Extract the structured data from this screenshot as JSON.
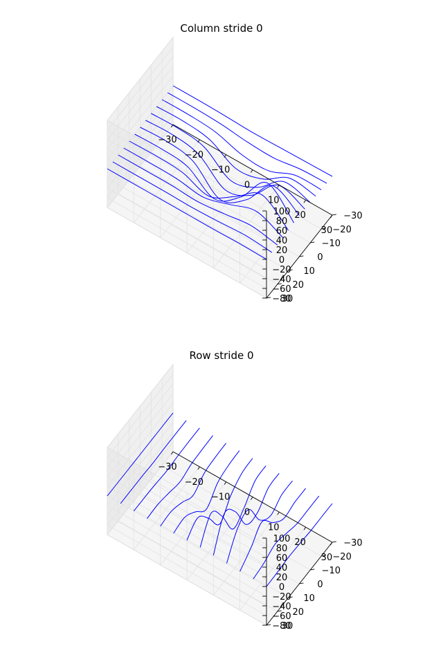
{
  "colors": {
    "line": "#0000ff",
    "pane_left": "#f0f0f0",
    "pane_back": "#ebebeb",
    "pane_floor": "#f5f5f5"
  },
  "chart_data": [
    {
      "type": "wireframe-3d",
      "title": "Column stride 0",
      "wire_direction": "lines along x at fixed y (rows)",
      "x_ticks": [
        "−30",
        "−20",
        "−10",
        "0",
        "10",
        "20",
        "30"
      ],
      "y_ticks": [
        "−30",
        "−20",
        "−10",
        "0",
        "10",
        "20",
        "30"
      ],
      "z_ticks": [
        "−80",
        "−60",
        "−40",
        "−20",
        "0",
        "20",
        "40",
        "60",
        "80",
        "100"
      ],
      "xlim": [
        -30,
        30
      ],
      "ylim": [
        -30,
        30
      ],
      "zlim": [
        -80,
        100
      ],
      "grid": true,
      "lines": [
        {
          "y": -30,
          "x": [
            -30,
            -20,
            -10,
            0,
            10,
            20,
            30
          ],
          "z": [
            0,
            0,
            -1,
            -3,
            -2,
            -1,
            0
          ]
        },
        {
          "y": -25,
          "x": [
            -30,
            -20,
            -10,
            0,
            10,
            20,
            30
          ],
          "z": [
            0,
            0,
            -2,
            -8,
            -10,
            -2,
            0
          ]
        },
        {
          "y": -20,
          "x": [
            -30,
            -20,
            -10,
            0,
            10,
            20,
            30
          ],
          "z": [
            0,
            0,
            -4,
            -20,
            -22,
            0,
            1
          ]
        },
        {
          "y": -15,
          "x": [
            -30,
            -20,
            -10,
            0,
            10,
            20,
            30
          ],
          "z": [
            0,
            1,
            -6,
            -35,
            -25,
            8,
            2
          ]
        },
        {
          "y": -10,
          "x": [
            -30,
            -20,
            -10,
            0,
            10,
            20,
            30
          ],
          "z": [
            0,
            1,
            -7,
            -45,
            -28,
            15,
            3
          ]
        },
        {
          "y": -5,
          "x": [
            -30,
            -20,
            -10,
            0,
            10,
            20,
            30
          ],
          "z": [
            0,
            2,
            -8,
            -50,
            -30,
            22,
            4
          ]
        },
        {
          "y": 0,
          "x": [
            -30,
            -20,
            -10,
            0,
            10,
            20,
            30
          ],
          "z": [
            0,
            2,
            -8,
            -55,
            -25,
            35,
            5
          ]
        },
        {
          "y": 5,
          "x": [
            -30,
            -20,
            -10,
            0,
            10,
            20,
            30
          ],
          "z": [
            0,
            1,
            -5,
            -40,
            -5,
            55,
            4
          ]
        },
        {
          "y": 10,
          "x": [
            -30,
            -20,
            -10,
            0,
            10,
            20,
            30
          ],
          "z": [
            0,
            1,
            -2,
            -20,
            10,
            45,
            3
          ]
        },
        {
          "y": 15,
          "x": [
            -30,
            -20,
            -10,
            0,
            10,
            20,
            30
          ],
          "z": [
            0,
            0,
            -1,
            -8,
            8,
            25,
            2
          ]
        },
        {
          "y": 20,
          "x": [
            -30,
            -20,
            -10,
            0,
            10,
            20,
            30
          ],
          "z": [
            0,
            0,
            0,
            -3,
            3,
            10,
            1
          ]
        },
        {
          "y": 25,
          "x": [
            -30,
            -20,
            -10,
            0,
            10,
            20,
            30
          ],
          "z": [
            0,
            0,
            0,
            -1,
            1,
            4,
            0
          ]
        },
        {
          "y": 30,
          "x": [
            -30,
            -20,
            -10,
            0,
            10,
            20,
            30
          ],
          "z": [
            0,
            0,
            0,
            0,
            0,
            1,
            0
          ]
        }
      ]
    },
    {
      "type": "wireframe-3d",
      "title": "Row stride 0",
      "wire_direction": "lines along y at fixed x (columns)",
      "x_ticks": [
        "−30",
        "−20",
        "−10",
        "0",
        "10",
        "20",
        "30"
      ],
      "y_ticks": [
        "−30",
        "−20",
        "−10",
        "0",
        "10",
        "20",
        "30"
      ],
      "z_ticks": [
        "−80",
        "−60",
        "−40",
        "−20",
        "0",
        "20",
        "40",
        "60",
        "80",
        "100"
      ],
      "xlim": [
        -30,
        30
      ],
      "ylim": [
        -30,
        30
      ],
      "zlim": [
        -80,
        100
      ],
      "grid": true,
      "lines": [
        {
          "x": -30,
          "y": [
            -30,
            -20,
            -10,
            0,
            10,
            20,
            30
          ],
          "z": [
            0,
            0,
            0,
            0,
            0,
            0,
            0
          ]
        },
        {
          "x": -25,
          "y": [
            -30,
            -20,
            -10,
            0,
            10,
            20,
            30
          ],
          "z": [
            0,
            0,
            0,
            -1,
            0,
            0,
            0
          ]
        },
        {
          "x": -20,
          "y": [
            -30,
            -20,
            -10,
            0,
            10,
            20,
            30
          ],
          "z": [
            0,
            0,
            -1,
            -3,
            -1,
            0,
            0
          ]
        },
        {
          "x": -15,
          "y": [
            -30,
            -20,
            -10,
            0,
            10,
            20,
            30
          ],
          "z": [
            0,
            -1,
            -3,
            -10,
            -4,
            1,
            0
          ]
        },
        {
          "x": -10,
          "y": [
            -30,
            -20,
            -10,
            0,
            10,
            20,
            30
          ],
          "z": [
            0,
            -1,
            -5,
            -22,
            -8,
            2,
            0
          ]
        },
        {
          "x": -5,
          "y": [
            -30,
            -20,
            -10,
            0,
            10,
            20,
            30
          ],
          "z": [
            0,
            -2,
            -10,
            -35,
            -12,
            5,
            1
          ]
        },
        {
          "x": 0,
          "y": [
            -30,
            -20,
            -10,
            0,
            10,
            20,
            30
          ],
          "z": [
            0,
            -3,
            -20,
            -50,
            -10,
            20,
            2
          ]
        },
        {
          "x": 5,
          "y": [
            -30,
            -20,
            -10,
            0,
            10,
            20,
            30
          ],
          "z": [
            0,
            -3,
            -30,
            -45,
            10,
            45,
            3
          ]
        },
        {
          "x": 10,
          "y": [
            -30,
            -20,
            -10,
            0,
            10,
            20,
            30
          ],
          "z": [
            0,
            -2,
            -25,
            -20,
            35,
            60,
            2
          ]
        },
        {
          "x": 15,
          "y": [
            -30,
            -20,
            -10,
            0,
            10,
            20,
            30
          ],
          "z": [
            0,
            -1,
            -15,
            5,
            55,
            45,
            1
          ]
        },
        {
          "x": 20,
          "y": [
            -30,
            -20,
            -10,
            0,
            10,
            20,
            30
          ],
          "z": [
            0,
            0,
            -5,
            15,
            45,
            20,
            0
          ]
        },
        {
          "x": 25,
          "y": [
            -30,
            -20,
            -10,
            0,
            10,
            20,
            30
          ],
          "z": [
            0,
            0,
            0,
            8,
            15,
            5,
            0
          ]
        },
        {
          "x": 30,
          "y": [
            -30,
            -20,
            -10,
            0,
            10,
            20,
            30
          ],
          "z": [
            0,
            0,
            0,
            2,
            3,
            1,
            0
          ]
        }
      ]
    }
  ]
}
